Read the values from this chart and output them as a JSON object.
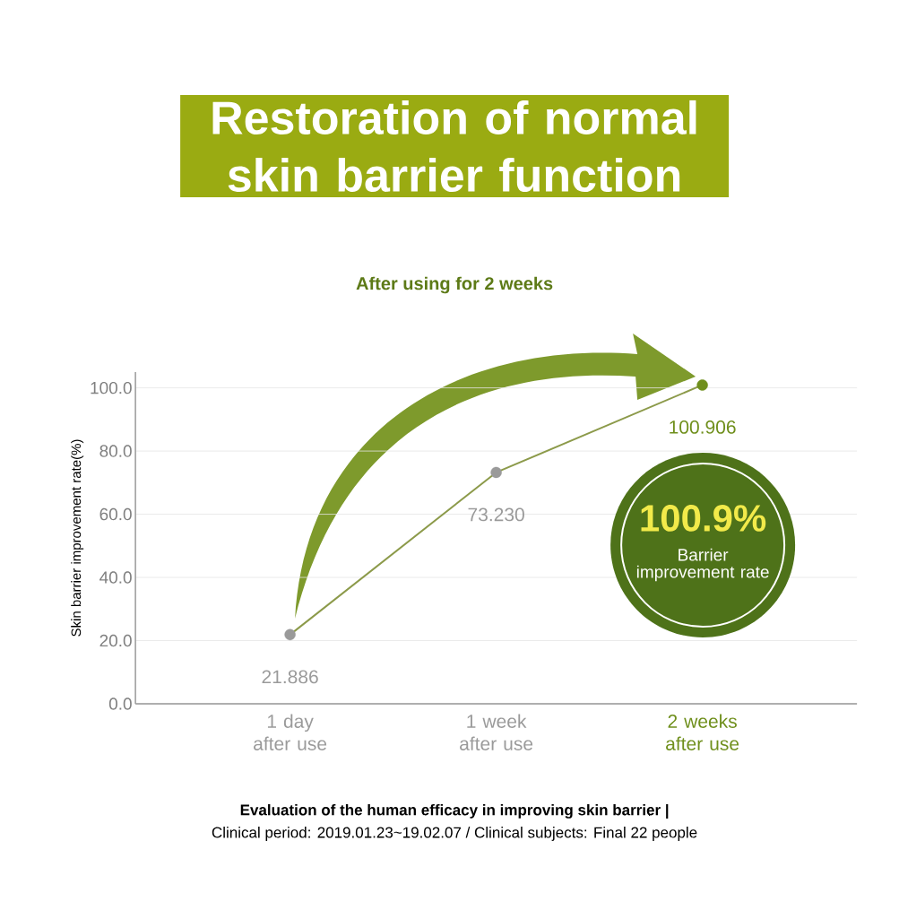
{
  "chart_data": {
    "type": "line",
    "title": "Restoration of normal skin barrier function",
    "subtitle": "After using for 2 weeks",
    "ylabel": "Skin barrier improvement rate(%)",
    "categories": [
      "1 day after use",
      "1 week after use",
      "2 weeks after use"
    ],
    "values": [
      21.886,
      73.23,
      100.906
    ],
    "value_labels": [
      "21.886",
      "73.230",
      "100.906"
    ],
    "color": "#8c9a4a",
    "colors": [
      "#9a9a9a",
      "#9a9a9a",
      "#6f8f1c"
    ],
    "ylim": [
      0,
      105
    ],
    "yticks": [
      {
        "value": 0,
        "label": "0.0"
      },
      {
        "value": 20,
        "label": "20.0"
      },
      {
        "value": 40,
        "label": "40.0"
      },
      {
        "value": 60,
        "label": "60.0"
      },
      {
        "value": 80,
        "label": "80.0"
      },
      {
        "value": 100,
        "label": "100.0"
      }
    ],
    "grid": "y",
    "marker": "circle",
    "line_style": "solid",
    "annotations": [
      "100.9%",
      "Barrier improvement rate",
      "Evaluation of the human efficacy in improving skin barrier |",
      "Clinical period: 2019.01.23~19.02.07 / Clinical subjects: Final 22 people"
    ]
  }
}
